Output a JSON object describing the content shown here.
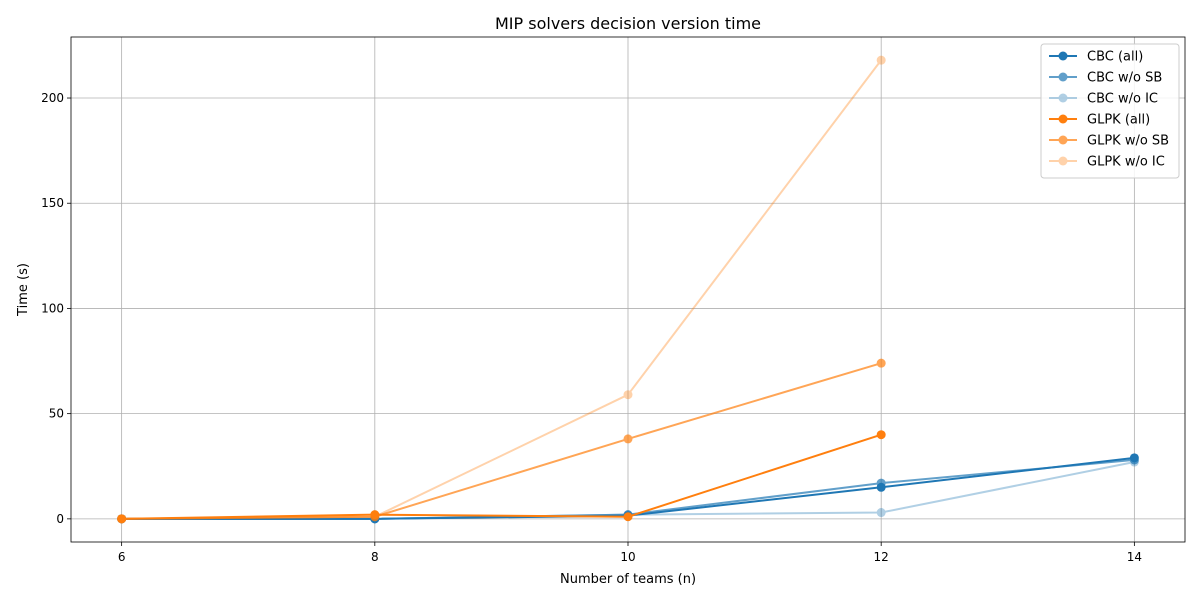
{
  "chart_data": {
    "type": "line",
    "title": "MIP solvers decision version time",
    "xlabel": "Number of teams (n)",
    "ylabel": "Time (s)",
    "xlim": [
      5.6,
      14.4
    ],
    "ylim": [
      -11,
      229
    ],
    "xticks": [
      6,
      8,
      10,
      12,
      14
    ],
    "yticks": [
      0,
      50,
      100,
      150,
      200
    ],
    "grid": true,
    "legend_position": "top-right",
    "series": [
      {
        "name": "CBC (all)",
        "color": "#1f77b4",
        "opacity": 1.0,
        "x": [
          6,
          8,
          10,
          12,
          14
        ],
        "values": [
          0,
          0,
          1.5,
          15,
          29
        ]
      },
      {
        "name": "CBC w/o SB",
        "color": "#1f77b4",
        "opacity": 0.7,
        "x": [
          6,
          8,
          10,
          12,
          14
        ],
        "values": [
          0,
          0,
          2,
          17,
          28
        ]
      },
      {
        "name": "CBC w/o IC",
        "color": "#1f77b4",
        "opacity": 0.35,
        "x": [
          6,
          8,
          10,
          12,
          14
        ],
        "values": [
          0,
          0,
          2,
          3,
          27
        ]
      },
      {
        "name": "GLPK (all)",
        "color": "#ff7f0e",
        "opacity": 1.0,
        "x": [
          6,
          8,
          10,
          12
        ],
        "values": [
          0,
          2,
          1,
          40
        ]
      },
      {
        "name": "GLPK w/o SB",
        "color": "#ff7f0e",
        "opacity": 0.7,
        "x": [
          6,
          8,
          10,
          12
        ],
        "values": [
          0,
          1,
          38,
          74
        ]
      },
      {
        "name": "GLPK w/o IC",
        "color": "#ff7f0e",
        "opacity": 0.35,
        "x": [
          6,
          8,
          10,
          12
        ],
        "values": [
          0,
          1,
          59,
          218
        ]
      }
    ]
  }
}
